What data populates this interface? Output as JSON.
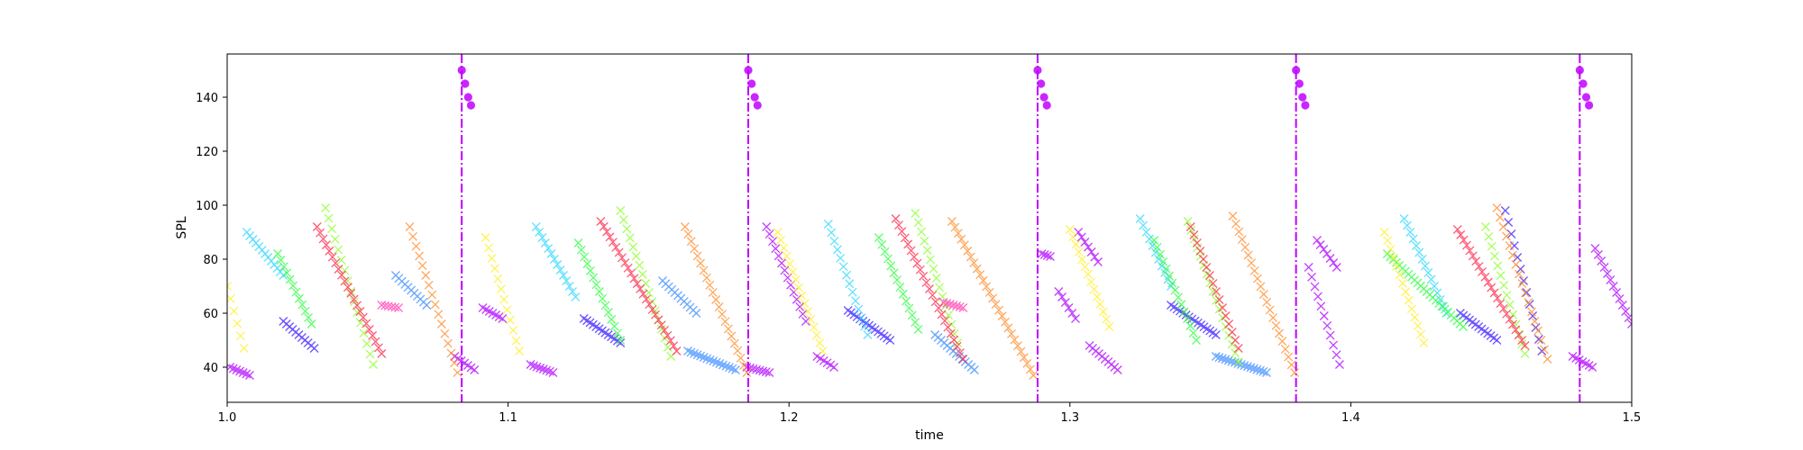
{
  "chart_data": {
    "type": "scatter",
    "title": "",
    "xlabel": "time",
    "ylabel": "SPL",
    "xlim": [
      1.0,
      1.5
    ],
    "ylim": [
      27,
      156
    ],
    "xticks": [
      "1.0",
      "1.1",
      "1.2",
      "1.3",
      "1.4",
      "1.5"
    ],
    "yticks": [
      "40",
      "60",
      "80",
      "100",
      "120",
      "140"
    ],
    "grid": false,
    "legend": "none",
    "colors": {
      "violet": "#b000ff",
      "purple": "#8a00ff",
      "blue": "#3a1cff",
      "skyblue": "#3a8cff",
      "cyan": "#2fd7ff",
      "teal": "#22f0c8",
      "green": "#28ff3a",
      "lime": "#8cff2a",
      "yellow": "#ffee22",
      "orange": "#ff8a26",
      "red": "#ff2448",
      "magenta": "#ff3ab0"
    },
    "vlines": [
      1.0835,
      1.1855,
      1.2885,
      1.3805,
      1.4815
    ],
    "vline_color": "#c000ff",
    "circle_clusters": [
      {
        "x": [
          1.0835,
          1.0847,
          1.0858,
          1.0868
        ],
        "y": [
          150,
          145,
          140,
          137
        ]
      },
      {
        "x": [
          1.1855,
          1.1867,
          1.1878,
          1.1888
        ],
        "y": [
          150,
          145,
          140,
          137
        ]
      },
      {
        "x": [
          1.2885,
          1.2897,
          1.2908,
          1.2918
        ],
        "y": [
          150,
          145,
          140,
          137
        ]
      },
      {
        "x": [
          1.3805,
          1.3817,
          1.3828,
          1.3838
        ],
        "y": [
          150,
          145,
          140,
          137
        ]
      },
      {
        "x": [
          1.4815,
          1.4827,
          1.4838,
          1.4848
        ],
        "y": [
          150,
          145,
          140,
          137
        ]
      }
    ],
    "segments": [
      {
        "series": "s1",
        "color": "violet",
        "x": [
          1.001,
          1.008
        ],
        "y": [
          40,
          37
        ]
      },
      {
        "series": "s1",
        "color": "violet",
        "x": [
          1.081,
          1.088
        ],
        "y": [
          44,
          39
        ]
      },
      {
        "series": "s1",
        "color": "violet",
        "x": [
          1.091,
          1.098
        ],
        "y": [
          62,
          58
        ]
      },
      {
        "series": "s1",
        "color": "violet",
        "x": [
          1.108,
          1.116
        ],
        "y": [
          41,
          38
        ]
      },
      {
        "series": "s1",
        "color": "violet",
        "x": [
          1.185,
          1.193
        ],
        "y": [
          40,
          38
        ]
      },
      {
        "series": "s1",
        "color": "violet",
        "x": [
          1.192,
          1.206
        ],
        "y": [
          92,
          57
        ]
      },
      {
        "series": "s1",
        "color": "violet",
        "x": [
          1.21,
          1.216
        ],
        "y": [
          44,
          40
        ]
      },
      {
        "series": "s1",
        "color": "violet",
        "x": [
          1.29,
          1.293
        ],
        "y": [
          82,
          81
        ]
      },
      {
        "series": "s1",
        "color": "violet",
        "x": [
          1.296,
          1.302
        ],
        "y": [
          68,
          58
        ]
      },
      {
        "series": "s1",
        "color": "violet",
        "x": [
          1.303,
          1.31
        ],
        "y": [
          90,
          79
        ]
      },
      {
        "series": "s1",
        "color": "violet",
        "x": [
          1.307,
          1.317
        ],
        "y": [
          48,
          39
        ]
      },
      {
        "series": "s1",
        "color": "violet",
        "x": [
          1.385,
          1.396
        ],
        "y": [
          77,
          41
        ]
      },
      {
        "series": "s1",
        "color": "violet",
        "x": [
          1.388,
          1.395
        ],
        "y": [
          87,
          77
        ]
      },
      {
        "series": "s1",
        "color": "violet",
        "x": [
          1.479,
          1.486
        ],
        "y": [
          44,
          40
        ]
      },
      {
        "series": "s1",
        "color": "violet",
        "x": [
          1.487,
          1.5
        ],
        "y": [
          84,
          56
        ]
      },
      {
        "series": "s2",
        "color": "blue",
        "x": [
          1.02,
          1.031
        ],
        "y": [
          57,
          47
        ]
      },
      {
        "series": "s2",
        "color": "blue",
        "x": [
          1.127,
          1.14
        ],
        "y": [
          58,
          49
        ]
      },
      {
        "series": "s2",
        "color": "blue",
        "x": [
          1.221,
          1.236
        ],
        "y": [
          61,
          50
        ]
      },
      {
        "series": "s2",
        "color": "blue",
        "x": [
          1.336,
          1.352
        ],
        "y": [
          63,
          52
        ]
      },
      {
        "series": "s2",
        "color": "blue",
        "x": [
          1.439,
          1.452
        ],
        "y": [
          60,
          50
        ]
      },
      {
        "series": "s2",
        "color": "blue",
        "x": [
          1.455,
          1.468
        ],
        "y": [
          98,
          46
        ]
      },
      {
        "series": "s3",
        "color": "skyblue",
        "x": [
          1.06,
          1.071
        ],
        "y": [
          74,
          63
        ]
      },
      {
        "series": "s3",
        "color": "skyblue",
        "x": [
          1.155,
          1.167
        ],
        "y": [
          72,
          60
        ]
      },
      {
        "series": "s3",
        "color": "skyblue",
        "x": [
          1.252,
          1.266
        ],
        "y": [
          52,
          39
        ]
      },
      {
        "series": "s3",
        "color": "skyblue",
        "x": [
          1.352,
          1.37
        ],
        "y": [
          44,
          38
        ]
      },
      {
        "series": "s3",
        "color": "skyblue",
        "x": [
          1.164,
          1.181
        ],
        "y": [
          46,
          39
        ]
      },
      {
        "series": "s4",
        "color": "cyan",
        "x": [
          1.007,
          1.02
        ],
        "y": [
          90,
          74
        ]
      },
      {
        "series": "s4",
        "color": "cyan",
        "x": [
          1.11,
          1.124
        ],
        "y": [
          92,
          66
        ]
      },
      {
        "series": "s4",
        "color": "cyan",
        "x": [
          1.214,
          1.228
        ],
        "y": [
          93,
          52
        ]
      },
      {
        "series": "s4",
        "color": "cyan",
        "x": [
          1.325,
          1.336
        ],
        "y": [
          95,
          70
        ]
      },
      {
        "series": "s4",
        "color": "cyan",
        "x": [
          1.419,
          1.434
        ],
        "y": [
          95,
          60
        ]
      },
      {
        "series": "s5",
        "color": "green",
        "x": [
          1.018,
          1.03
        ],
        "y": [
          82,
          56
        ]
      },
      {
        "series": "s5",
        "color": "green",
        "x": [
          1.125,
          1.14
        ],
        "y": [
          86,
          50
        ]
      },
      {
        "series": "s5",
        "color": "green",
        "x": [
          1.232,
          1.246
        ],
        "y": [
          88,
          54
        ]
      },
      {
        "series": "s5",
        "color": "green",
        "x": [
          1.33,
          1.345
        ],
        "y": [
          87,
          50
        ]
      },
      {
        "series": "s5",
        "color": "green",
        "x": [
          1.413,
          1.44
        ],
        "y": [
          82,
          55
        ]
      },
      {
        "series": "s6",
        "color": "lime",
        "x": [
          1.035,
          1.052
        ],
        "y": [
          99,
          41
        ]
      },
      {
        "series": "s6",
        "color": "lime",
        "x": [
          1.14,
          1.158
        ],
        "y": [
          98,
          44
        ]
      },
      {
        "series": "s6",
        "color": "lime",
        "x": [
          1.245,
          1.26
        ],
        "y": [
          97,
          49
        ]
      },
      {
        "series": "s6",
        "color": "lime",
        "x": [
          1.342,
          1.36
        ],
        "y": [
          94,
          42
        ]
      },
      {
        "series": "s6",
        "color": "lime",
        "x": [
          1.448,
          1.462
        ],
        "y": [
          92,
          45
        ]
      },
      {
        "series": "s7",
        "color": "yellow",
        "x": [
          1.0,
          1.006
        ],
        "y": [
          70,
          47
        ]
      },
      {
        "series": "s7",
        "color": "yellow",
        "x": [
          1.092,
          1.104
        ],
        "y": [
          88,
          46
        ]
      },
      {
        "series": "s7",
        "color": "yellow",
        "x": [
          1.196,
          1.212
        ],
        "y": [
          90,
          46
        ]
      },
      {
        "series": "s7",
        "color": "yellow",
        "x": [
          1.3,
          1.314
        ],
        "y": [
          91,
          55
        ]
      },
      {
        "series": "s7",
        "color": "yellow",
        "x": [
          1.412,
          1.426
        ],
        "y": [
          90,
          49
        ]
      },
      {
        "series": "s8",
        "color": "orange",
        "x": [
          1.065,
          1.082
        ],
        "y": [
          92,
          38
        ]
      },
      {
        "series": "s8",
        "color": "orange",
        "x": [
          1.163,
          1.185
        ],
        "y": [
          92,
          38
        ]
      },
      {
        "series": "s8",
        "color": "orange",
        "x": [
          1.258,
          1.287
        ],
        "y": [
          94,
          37
        ]
      },
      {
        "series": "s8",
        "color": "orange",
        "x": [
          1.358,
          1.38
        ],
        "y": [
          96,
          38
        ]
      },
      {
        "series": "s8",
        "color": "orange",
        "x": [
          1.452,
          1.47
        ],
        "y": [
          99,
          43
        ]
      },
      {
        "series": "s9",
        "color": "red",
        "x": [
          1.032,
          1.055
        ],
        "y": [
          92,
          45
        ]
      },
      {
        "series": "s9",
        "color": "red",
        "x": [
          1.133,
          1.16
        ],
        "y": [
          94,
          46
        ]
      },
      {
        "series": "s9",
        "color": "red",
        "x": [
          1.238,
          1.262
        ],
        "y": [
          95,
          43
        ]
      },
      {
        "series": "s9",
        "color": "red",
        "x": [
          1.343,
          1.36
        ],
        "y": [
          92,
          47
        ]
      },
      {
        "series": "s9",
        "color": "red",
        "x": [
          1.438,
          1.462
        ],
        "y": [
          91,
          48
        ]
      },
      {
        "series": "s10",
        "color": "magenta",
        "x": [
          1.055,
          1.061
        ],
        "y": [
          63,
          62
        ]
      },
      {
        "series": "s10",
        "color": "magenta",
        "x": [
          1.255,
          1.262
        ],
        "y": [
          64,
          62
        ]
      }
    ]
  }
}
